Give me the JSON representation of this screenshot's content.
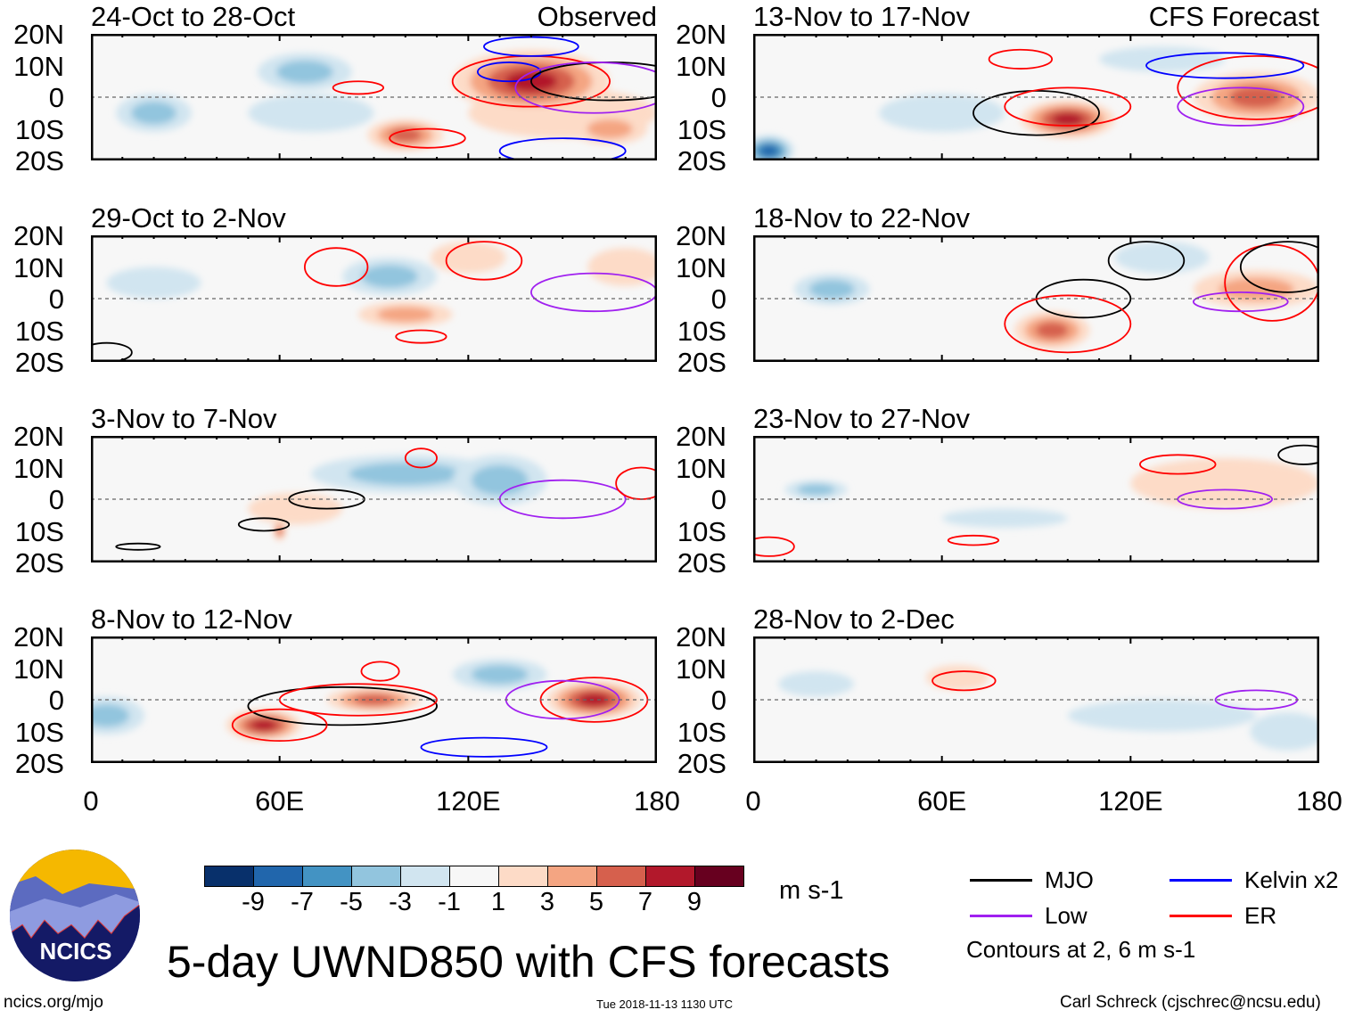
{
  "title": "5-day UWND850 with CFS forecasts",
  "footer": {
    "url": "ncics.org/mjo",
    "timestamp": "Tue 2018-11-13 1130 UTC",
    "author": "Carl Schreck (cjschrec@ncsu.edu)"
  },
  "logo": {
    "text": "NCICS"
  },
  "labels": {
    "observed": "Observed",
    "forecast": "CFS Forecast"
  },
  "axes": {
    "lat": [
      "20N",
      "10N",
      "0",
      "10S",
      "20S"
    ],
    "lon": [
      "0",
      "60E",
      "120E",
      "180"
    ]
  },
  "colorbar": {
    "units": "m s-1",
    "ticks": [
      "-9",
      "-7",
      "-5",
      "-3",
      "-1",
      "1",
      "3",
      "5",
      "7",
      "9"
    ],
    "colors": [
      "#08306b",
      "#2166ac",
      "#4393c3",
      "#92c5de",
      "#d1e5f0",
      "#f7f7f7",
      "#fddbc7",
      "#f4a582",
      "#d6604d",
      "#b2182b",
      "#67001f"
    ]
  },
  "legend": {
    "items": [
      {
        "label": "MJO",
        "color": "#000000"
      },
      {
        "label": "Kelvin x2",
        "color": "#0000ff"
      },
      {
        "label": "Low",
        "color": "#a020f0"
      },
      {
        "label": "ER",
        "color": "#ff0000"
      }
    ],
    "note": "Contours at 2, 6 m s-1"
  },
  "chart_data": {
    "type": "heatmap",
    "variable": "850-hPa zonal wind anomaly",
    "lon_range": [
      0,
      180
    ],
    "lat_range": [
      -20,
      20
    ],
    "panels": [
      {
        "title": "24-Oct to 28-Oct",
        "col": 0,
        "row": 0,
        "anoms": [
          [
            150,
            -5,
            30,
            8,
            3
          ],
          [
            70,
            -5,
            20,
            6,
            -3
          ],
          [
            68,
            8,
            15,
            6,
            -5
          ],
          [
            20,
            -5,
            12,
            6,
            -5
          ],
          [
            100,
            -12,
            12,
            5,
            7
          ],
          [
            165,
            -10,
            12,
            5,
            5
          ],
          [
            140,
            5,
            25,
            10,
            9
          ]
        ],
        "contours": [
          [
            "ER",
            85,
            3,
            8,
            2
          ],
          [
            "ER",
            140,
            5,
            25,
            8
          ],
          [
            "ER",
            107,
            -13,
            12,
            3
          ],
          [
            "Kelvin",
            133,
            8,
            10,
            3
          ],
          [
            "Kelvin",
            140,
            16,
            15,
            3
          ],
          [
            "Kelvin",
            150,
            -17,
            20,
            4
          ],
          [
            "MJO",
            165,
            5,
            25,
            6
          ],
          [
            "Low",
            160,
            3,
            25,
            8
          ]
        ]
      },
      {
        "title": "13-Nov to 17-Nov",
        "col": 1,
        "row": 0,
        "anoms": [
          [
            60,
            -5,
            20,
            6,
            -3
          ],
          [
            130,
            12,
            20,
            4,
            -3
          ],
          [
            5,
            -17,
            8,
            5,
            -9
          ],
          [
            160,
            0,
            20,
            8,
            7
          ],
          [
            100,
            -7,
            15,
            6,
            9
          ]
        ],
        "contours": [
          [
            "MJO",
            90,
            -5,
            20,
            7
          ],
          [
            "ER",
            100,
            -3,
            20,
            6
          ],
          [
            "ER",
            160,
            3,
            25,
            10
          ],
          [
            "Kelvin",
            150,
            10,
            25,
            4
          ],
          [
            "Low",
            155,
            -3,
            20,
            6
          ],
          [
            "ER",
            85,
            12,
            10,
            3
          ]
        ]
      },
      {
        "title": "29-Oct to 2-Nov",
        "col": 0,
        "row": 1,
        "anoms": [
          [
            20,
            5,
            15,
            5,
            -3
          ],
          [
            120,
            13,
            12,
            5,
            3
          ],
          [
            170,
            10,
            12,
            6,
            3
          ],
          [
            100,
            -5,
            15,
            4,
            5
          ],
          [
            95,
            7,
            15,
            6,
            -5
          ]
        ],
        "contours": [
          [
            "ER",
            78,
            10,
            10,
            6
          ],
          [
            "ER",
            125,
            12,
            12,
            6
          ],
          [
            "Low",
            160,
            2,
            20,
            6
          ],
          [
            "ER",
            105,
            -12,
            8,
            2
          ],
          [
            "MJO",
            5,
            -17,
            8,
            3
          ]
        ]
      },
      {
        "title": "18-Nov to 22-Nov",
        "col": 1,
        "row": 1,
        "anoms": [
          [
            25,
            3,
            12,
            5,
            -5
          ],
          [
            130,
            13,
            15,
            5,
            -3
          ],
          [
            160,
            3,
            20,
            6,
            5
          ],
          [
            95,
            -10,
            12,
            6,
            7
          ]
        ],
        "contours": [
          [
            "MJO",
            105,
            0,
            15,
            6
          ],
          [
            "MJO",
            125,
            12,
            12,
            6
          ],
          [
            "ER",
            100,
            -8,
            20,
            9
          ],
          [
            "ER",
            165,
            5,
            15,
            12
          ],
          [
            "Low",
            155,
            -1,
            15,
            3
          ],
          [
            "MJO",
            170,
            10,
            15,
            8
          ]
        ]
      },
      {
        "title": "3-Nov to 7-Nov",
        "col": 0,
        "row": 2,
        "anoms": [
          [
            65,
            -3,
            15,
            5,
            3
          ],
          [
            100,
            8,
            30,
            6,
            -5
          ],
          [
            130,
            6,
            15,
            8,
            -5
          ],
          [
            60,
            -10,
            2,
            3,
            7
          ]
        ],
        "contours": [
          [
            "MJO",
            75,
            0,
            12,
            3
          ],
          [
            "MJO",
            55,
            -8,
            8,
            2
          ],
          [
            "Low",
            150,
            0,
            20,
            6
          ],
          [
            "ER",
            175,
            5,
            8,
            5
          ],
          [
            "ER",
            105,
            13,
            5,
            3
          ],
          [
            "MJO",
            15,
            -15,
            7,
            1
          ]
        ]
      },
      {
        "title": "23-Nov to 27-Nov",
        "col": 1,
        "row": 2,
        "anoms": [
          [
            150,
            5,
            30,
            8,
            3
          ],
          [
            20,
            3,
            10,
            3,
            -5
          ],
          [
            80,
            -6,
            20,
            3,
            -3
          ]
        ],
        "contours": [
          [
            "ER",
            135,
            11,
            12,
            3
          ],
          [
            "Low",
            150,
            0,
            15,
            3
          ],
          [
            "ER",
            70,
            -13,
            8,
            1.5
          ],
          [
            "MJO",
            175,
            14,
            8,
            3
          ],
          [
            "ER",
            5,
            -15,
            8,
            3
          ]
        ]
      },
      {
        "title": "8-Nov to 12-Nov",
        "col": 0,
        "row": 3,
        "anoms": [
          [
            5,
            -5,
            12,
            6,
            -5
          ],
          [
            130,
            8,
            15,
            5,
            -5
          ],
          [
            90,
            0,
            15,
            4,
            7
          ],
          [
            55,
            -8,
            12,
            5,
            9
          ],
          [
            160,
            0,
            15,
            6,
            9
          ]
        ],
        "contours": [
          [
            "MJO",
            80,
            -2,
            30,
            6
          ],
          [
            "ER",
            85,
            0,
            25,
            5
          ],
          [
            "ER",
            60,
            -8,
            15,
            5
          ],
          [
            "ER",
            160,
            0,
            17,
            7
          ],
          [
            "Low",
            150,
            0,
            18,
            6
          ],
          [
            "Kelvin",
            125,
            -15,
            20,
            3
          ],
          [
            "ER",
            92,
            9,
            6,
            3
          ]
        ]
      },
      {
        "title": "28-Nov to 2-Dec",
        "col": 1,
        "row": 3,
        "anoms": [
          [
            20,
            5,
            12,
            4,
            -3
          ],
          [
            130,
            -5,
            30,
            5,
            -3
          ],
          [
            170,
            -10,
            12,
            6,
            -3
          ],
          [
            65,
            7,
            10,
            4,
            3
          ]
        ],
        "contours": [
          [
            "ER",
            67,
            6,
            10,
            3
          ],
          [
            "Low",
            160,
            0,
            13,
            3
          ]
        ]
      }
    ]
  }
}
